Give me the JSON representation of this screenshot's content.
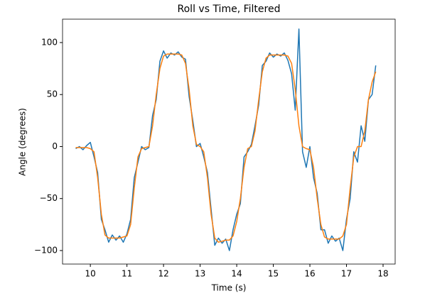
{
  "chart_data": {
    "type": "line",
    "title": "Roll vs Time, Filtered",
    "x_label": "Time (s)",
    "y_label": "Angle (degrees)",
    "x": [
      9.6,
      9.7,
      9.8,
      9.9,
      10.0,
      10.1,
      10.2,
      10.3,
      10.4,
      10.5,
      10.6,
      10.7,
      10.8,
      10.9,
      11.0,
      11.1,
      11.2,
      11.3,
      11.4,
      11.5,
      11.6,
      11.7,
      11.8,
      11.9,
      12.0,
      12.1,
      12.2,
      12.3,
      12.4,
      12.5,
      12.6,
      12.7,
      12.8,
      12.9,
      13.0,
      13.1,
      13.2,
      13.3,
      13.4,
      13.5,
      13.6,
      13.7,
      13.8,
      13.9,
      14.0,
      14.1,
      14.2,
      14.3,
      14.4,
      14.5,
      14.6,
      14.7,
      14.8,
      14.9,
      15.0,
      15.1,
      15.2,
      15.3,
      15.4,
      15.5,
      15.6,
      15.7,
      15.8,
      15.9,
      16.0,
      16.1,
      16.2,
      16.3,
      16.4,
      16.5,
      16.6,
      16.7,
      16.8,
      16.9,
      17.0,
      17.1,
      17.2,
      17.3,
      17.4,
      17.5,
      17.6,
      17.7,
      17.8
    ],
    "series": [
      {
        "color": "#1f77b4",
        "values": [
          -2,
          0,
          -3,
          1,
          4,
          -10,
          -25,
          -70,
          -80,
          -92,
          -85,
          -90,
          -86,
          -92,
          -84,
          -70,
          -30,
          -15,
          0,
          -3,
          -1,
          30,
          45,
          82,
          92,
          85,
          90,
          88,
          91,
          86,
          84,
          48,
          25,
          0,
          3,
          -10,
          -25,
          -60,
          -95,
          -88,
          -93,
          -89,
          -100,
          -80,
          -65,
          -55,
          -10,
          -5,
          2,
          20,
          40,
          78,
          82,
          90,
          86,
          89,
          87,
          90,
          83,
          70,
          35,
          113,
          -5,
          -20,
          0,
          -30,
          -45,
          -80,
          -80,
          -93,
          -86,
          -91,
          -88,
          -100,
          -70,
          -50,
          -5,
          -15,
          20,
          5,
          45,
          50,
          78
        ]
      },
      {
        "color": "#ff7f0e",
        "values": [
          -1,
          -1,
          -1,
          -1,
          -2,
          -5,
          -30,
          -65,
          -85,
          -88,
          -88,
          -88,
          -88,
          -87,
          -86,
          -75,
          -40,
          -10,
          -2,
          -1,
          0,
          20,
          50,
          75,
          87,
          89,
          89,
          89,
          89,
          88,
          80,
          55,
          20,
          2,
          0,
          -5,
          -30,
          -65,
          -88,
          -92,
          -91,
          -90,
          -90,
          -86,
          -72,
          -50,
          -20,
          -2,
          0,
          15,
          45,
          72,
          85,
          88,
          88,
          88,
          88,
          88,
          87,
          80,
          55,
          20,
          0,
          -2,
          -3,
          -20,
          -50,
          -75,
          -87,
          -89,
          -89,
          -89,
          -89,
          -86,
          -75,
          -40,
          -10,
          0,
          0,
          15,
          45,
          62,
          72
        ]
      }
    ],
    "xlim": [
      9.24,
      18.33
    ],
    "xticks": [
      10,
      11,
      12,
      13,
      14,
      15,
      16,
      17,
      18
    ],
    "ylim": [
      -113,
      122.5
    ],
    "yticks": [
      {
        "value": -100,
        "label": "−100"
      },
      {
        "value": -50,
        "label": "−50"
      },
      0,
      50,
      100
    ]
  }
}
